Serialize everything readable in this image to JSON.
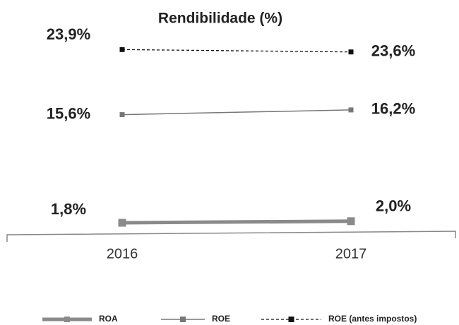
{
  "chart_data": {
    "type": "line",
    "title": "Rendibilidade (%)",
    "categories": [
      "2016",
      "2017"
    ],
    "series": [
      {
        "name": "ROA",
        "color": "#8a8a8a",
        "values": [
          1.8,
          2.0
        ],
        "value_labels": [
          "1,8%",
          "2,0%"
        ]
      },
      {
        "name": "ROE",
        "color": "#777777",
        "values": [
          15.6,
          16.2
        ],
        "value_labels": [
          "15,6%",
          "16,2%"
        ]
      },
      {
        "name": "ROE (antes impostos)",
        "color": "#111111",
        "values": [
          23.9,
          23.6
        ],
        "value_labels": [
          "23,9%",
          "23,6%"
        ]
      }
    ],
    "ylim": [
      0,
      26
    ],
    "legend": "bottom"
  }
}
